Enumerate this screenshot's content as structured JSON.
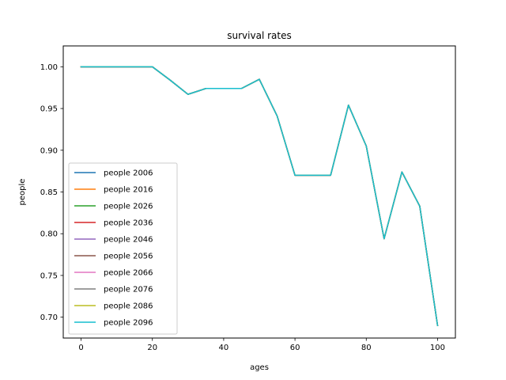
{
  "chart_data": {
    "type": "line",
    "title": "survival rates",
    "xlabel": "ages",
    "ylabel": "people",
    "xlim": [
      -5,
      105
    ],
    "ylim": [
      0.675,
      1.025
    ],
    "xticks": [
      0,
      20,
      40,
      60,
      80,
      100
    ],
    "yticks": [
      0.7,
      0.75,
      0.8,
      0.85,
      0.9,
      0.95,
      1.0
    ],
    "ytick_labels": [
      "0.70",
      "0.75",
      "0.80",
      "0.85",
      "0.90",
      "0.95",
      "1.00"
    ],
    "grid": false,
    "legend": "lower-left",
    "x": [
      0,
      5,
      10,
      15,
      20,
      25,
      30,
      35,
      40,
      45,
      50,
      55,
      60,
      65,
      70,
      75,
      80,
      85,
      90,
      95,
      100
    ],
    "y": [
      1.0,
      1.0,
      1.0,
      1.0,
      1.0,
      0.984,
      0.967,
      0.974,
      0.974,
      0.974,
      0.985,
      0.941,
      0.87,
      0.87,
      0.87,
      0.954,
      0.905,
      0.794,
      0.874,
      0.833,
      0.69
    ],
    "series": [
      {
        "name": "people 2006",
        "color": "#1f77b4"
      },
      {
        "name": "people 2016",
        "color": "#ff7f0e"
      },
      {
        "name": "people 2026",
        "color": "#2ca02c"
      },
      {
        "name": "people 2036",
        "color": "#d62728"
      },
      {
        "name": "people 2046",
        "color": "#9467bd"
      },
      {
        "name": "people 2056",
        "color": "#8c564b"
      },
      {
        "name": "people 2066",
        "color": "#e377c2"
      },
      {
        "name": "people 2076",
        "color": "#7f7f7f"
      },
      {
        "name": "people 2086",
        "color": "#bcbd22"
      },
      {
        "name": "people 2096",
        "color": "#17becf"
      }
    ]
  }
}
